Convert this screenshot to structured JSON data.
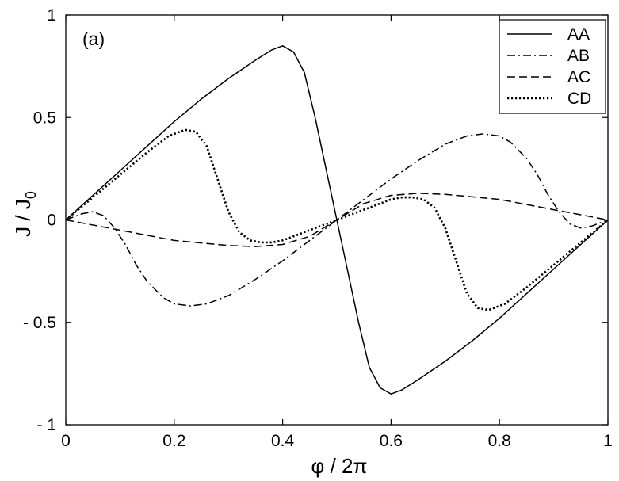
{
  "chart_data": {
    "type": "line",
    "panel_label": "(a)",
    "xlabel": "φ / 2π",
    "ylabel": {
      "main": "J / J",
      "subscript": "0"
    },
    "xlim": [
      0,
      1
    ],
    "ylim": [
      -1,
      1
    ],
    "x_ticks": [
      {
        "value": 0,
        "label": "0"
      },
      {
        "value": 0.2,
        "label": "0.2"
      },
      {
        "value": 0.4,
        "label": "0.4"
      },
      {
        "value": 0.6,
        "label": "0.6"
      },
      {
        "value": 0.8,
        "label": "0.8"
      },
      {
        "value": 1,
        "label": "1"
      }
    ],
    "y_ticks": [
      {
        "value": -1,
        "label": "- 1"
      },
      {
        "value": -0.5,
        "label": "- 0.5"
      },
      {
        "value": 0,
        "label": "0"
      },
      {
        "value": 0.5,
        "label": "0.5"
      },
      {
        "value": 1,
        "label": "1"
      }
    ],
    "grid": false,
    "legend_position": "top-right",
    "series": [
      {
        "name": "AA",
        "style": "solid",
        "x": [
          0,
          0.05,
          0.1,
          0.15,
          0.2,
          0.25,
          0.3,
          0.35,
          0.38,
          0.4,
          0.42,
          0.44,
          0.46,
          0.48,
          0.5,
          0.52,
          0.54,
          0.56,
          0.58,
          0.6,
          0.62,
          0.65,
          0.7,
          0.75,
          0.8,
          0.85,
          0.9,
          0.95,
          1
        ],
        "y": [
          0,
          0.12,
          0.24,
          0.36,
          0.48,
          0.59,
          0.69,
          0.78,
          0.83,
          0.85,
          0.82,
          0.72,
          0.5,
          0.25,
          0,
          -0.25,
          -0.5,
          -0.72,
          -0.82,
          -0.85,
          -0.83,
          -0.78,
          -0.69,
          -0.59,
          -0.48,
          -0.36,
          -0.24,
          -0.12,
          0
        ]
      },
      {
        "name": "AB",
        "style": "dashdot",
        "x": [
          0,
          0.03,
          0.05,
          0.07,
          0.09,
          0.11,
          0.13,
          0.15,
          0.18,
          0.2,
          0.23,
          0.26,
          0.3,
          0.35,
          0.4,
          0.45,
          0.5,
          0.55,
          0.6,
          0.65,
          0.7,
          0.74,
          0.77,
          0.8,
          0.82,
          0.85,
          0.87,
          0.89,
          0.91,
          0.93,
          0.95,
          0.97,
          1
        ],
        "y": [
          0,
          0.03,
          0.04,
          0.02,
          -0.04,
          -0.12,
          -0.22,
          -0.3,
          -0.38,
          -0.41,
          -0.42,
          -0.41,
          -0.37,
          -0.29,
          -0.2,
          -0.1,
          0,
          0.1,
          0.2,
          0.29,
          0.37,
          0.41,
          0.42,
          0.41,
          0.38,
          0.3,
          0.22,
          0.12,
          0.04,
          -0.02,
          -0.04,
          -0.03,
          0
        ]
      },
      {
        "name": "AC",
        "style": "dashed",
        "x": [
          0,
          0.1,
          0.2,
          0.3,
          0.35,
          0.4,
          0.45,
          0.5,
          0.55,
          0.6,
          0.65,
          0.7,
          0.8,
          0.9,
          1
        ],
        "y": [
          0,
          -0.05,
          -0.1,
          -0.125,
          -0.13,
          -0.12,
          -0.08,
          0,
          0.08,
          0.12,
          0.13,
          0.125,
          0.1,
          0.05,
          0
        ]
      },
      {
        "name": "CD",
        "style": "dotted",
        "x": [
          0,
          0.05,
          0.1,
          0.15,
          0.19,
          0.22,
          0.24,
          0.26,
          0.28,
          0.3,
          0.32,
          0.34,
          0.36,
          0.38,
          0.4,
          0.45,
          0.5,
          0.55,
          0.6,
          0.62,
          0.64,
          0.66,
          0.68,
          0.7,
          0.72,
          0.74,
          0.76,
          0.78,
          0.81,
          0.85,
          0.9,
          0.95,
          1
        ],
        "y": [
          0,
          0.11,
          0.22,
          0.33,
          0.41,
          0.44,
          0.43,
          0.36,
          0.2,
          0.04,
          -0.06,
          -0.1,
          -0.11,
          -0.11,
          -0.1,
          -0.05,
          0,
          0.05,
          0.1,
          0.11,
          0.11,
          0.1,
          0.06,
          -0.04,
          -0.2,
          -0.36,
          -0.43,
          -0.44,
          -0.41,
          -0.33,
          -0.22,
          -0.11,
          0
        ]
      }
    ]
  }
}
